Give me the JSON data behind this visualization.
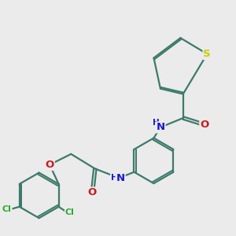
{
  "background_color": "#ebebeb",
  "bond_color": "#3d7a6a",
  "bond_width": 1.6,
  "atom_colors": {
    "S": "#cccc00",
    "N": "#1a1acc",
    "O": "#cc1a1a",
    "Cl": "#2eaa2e",
    "C": "#3d7a6a",
    "H": "#6a9a8a"
  },
  "font_size": 8.5,
  "figsize": [
    3.0,
    3.0
  ],
  "dpi": 100
}
